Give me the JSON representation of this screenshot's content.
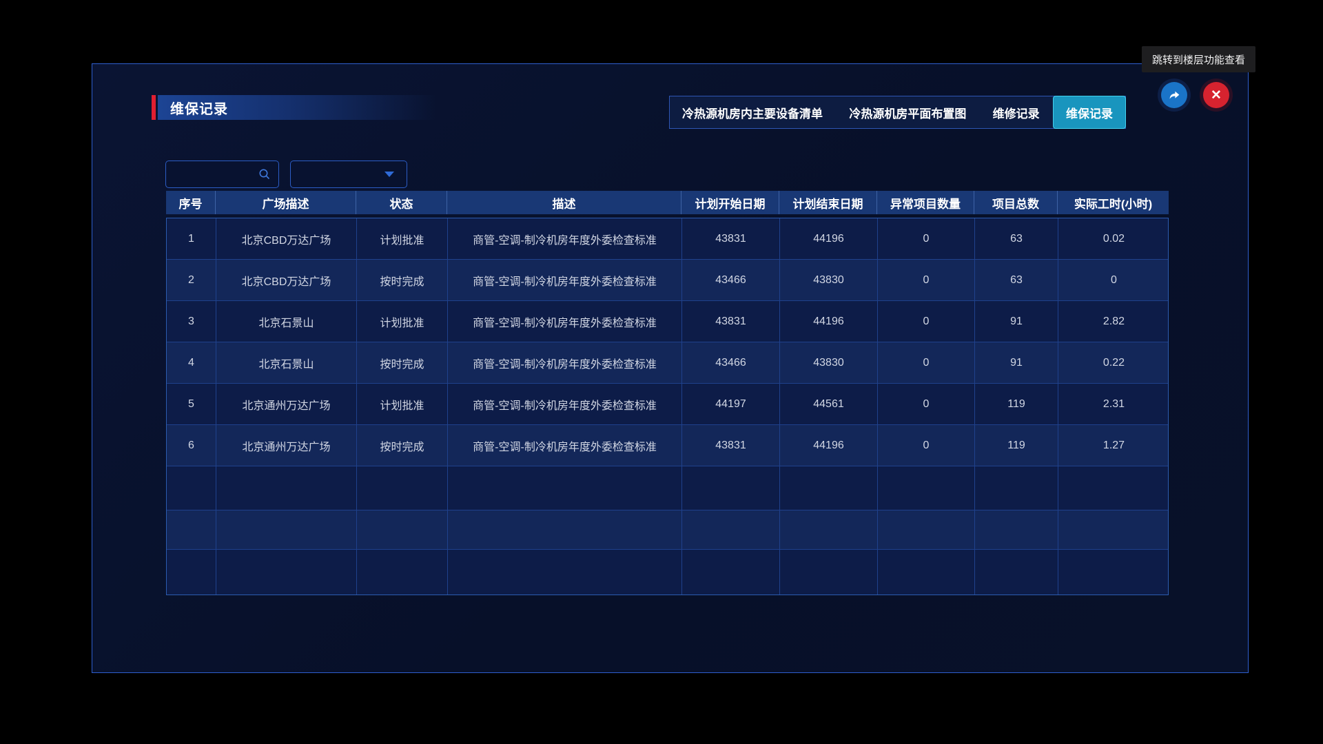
{
  "page": {
    "title": "维保记录"
  },
  "tooltip": {
    "text": "跳转到楼层功能查看"
  },
  "tabs": [
    {
      "name": "equipment-list",
      "label": "冷热源机房内主要设备清单",
      "active": false
    },
    {
      "name": "floor-plan",
      "label": "冷热源机房平面布置图",
      "active": false
    },
    {
      "name": "repair-records",
      "label": "维修记录",
      "active": false
    },
    {
      "name": "maintenance-records",
      "label": "维保记录",
      "active": true
    }
  ],
  "header_buttons": {
    "jump_icon": "share-arrow-icon",
    "close_icon": "close-icon"
  },
  "controls": {
    "search_value": "",
    "search_placeholder": "",
    "search_icon": "search-icon",
    "select_value": "",
    "select_icon": "chevron-down-icon"
  },
  "table": {
    "columns": [
      "序号",
      "广场描述",
      "状态",
      "描述",
      "计划开始日期",
      "计划结束日期",
      "异常项目数量",
      "项目总数",
      "实际工时(小时)"
    ],
    "rows": [
      [
        "1",
        "北京CBD万达广场",
        "计划批准",
        "商管-空调-制冷机房年度外委检查标准",
        "43831",
        "44196",
        "0",
        "63",
        "0.02"
      ],
      [
        "2",
        "北京CBD万达广场",
        "按时完成",
        "商管-空调-制冷机房年度外委检查标准",
        "43466",
        "43830",
        "0",
        "63",
        "0"
      ],
      [
        "3",
        "北京石景山",
        "计划批准",
        "商管-空调-制冷机房年度外委检查标准",
        "43831",
        "44196",
        "0",
        "91",
        "2.82"
      ],
      [
        "4",
        "北京石景山",
        "按时完成",
        "商管-空调-制冷机房年度外委检查标准",
        "43466",
        "43830",
        "0",
        "91",
        "0.22"
      ],
      [
        "5",
        "北京通州万达广场",
        "计划批准",
        "商管-空调-制冷机房年度外委检查标准",
        "44197",
        "44561",
        "0",
        "119",
        "2.31"
      ],
      [
        "6",
        "北京通州万达广场",
        "按时完成",
        "商管-空调-制冷机房年度外委检查标准",
        "43831",
        "44196",
        "0",
        "119",
        "1.27"
      ]
    ],
    "empty_rows": 3
  },
  "colors": {
    "accent_red": "#e01f31",
    "panel_border": "#2f5fd0",
    "active_tab_bg": "#1995be",
    "active_tab_border": "#43d2ef",
    "header_bg": "#193875",
    "row_odd": "#0d1c48",
    "row_even": "#132759",
    "grid_border": "#1f418c",
    "icon_blue": "#1a74c8",
    "icon_red": "#d7232f"
  }
}
